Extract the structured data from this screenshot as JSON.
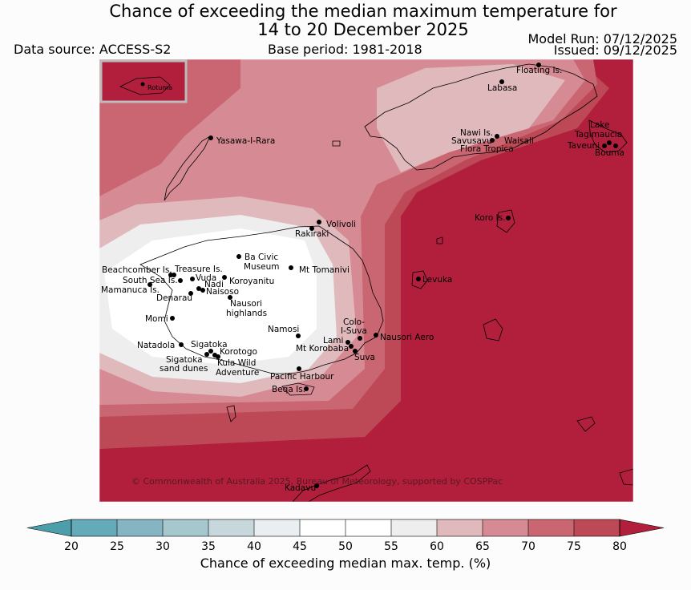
{
  "title_line1": "Chance of exceeding the median maximum temperature for",
  "title_line2": "14 to 20 December 2025",
  "data_source": "Data source: ACCESS-S2",
  "base_period": "Base period: 1981-2018",
  "model_run": "Model Run: 07/12/2025",
  "issued": "Issued: 09/12/2025",
  "copyright": "© Commonwealth of Australia 2025, Bureau of Meteorology, supported by COSPPac",
  "inset_label": "Rotuma",
  "places": {
    "floating": "Floating Is.",
    "labasa": "Labasa",
    "yasawa": "Yasawa-I-Rara",
    "nawi": "Nawi Is.",
    "savusavu": "Savusavu",
    "waisali": "Waisali",
    "flora": "Flora Tropica",
    "lake": "Lake",
    "tagimaucia": "Tagimaucia",
    "taveuni": "Taveuni",
    "bouma": "Bouma",
    "koro": "Koro Is.",
    "volivoli": "Volivoli",
    "rakiraki": "Rakiraki",
    "beachcomber": "Beachcomber Is.",
    "treasure": "Treasure Is.",
    "baciviclabel1": "Ba Civic",
    "baciviclabel2": "Museum",
    "tomanivi": "Mt Tomanivi",
    "southsea": "South Sea Is.",
    "vuda": "Vuda",
    "nadi": "Nadi",
    "koroyanitu": "Koroyanitu",
    "mamanuca": "Mamanuca Is.",
    "naisoso": "Naisoso",
    "denarau": "Denarau",
    "levuka": "Levuka",
    "nausori_h1": "Nausori",
    "nausori_h2": "highlands",
    "momi": "Momi",
    "namosi": "Namosi",
    "colo1": "Colo-",
    "colo2": "I-Suva",
    "lami": "Lami",
    "nausori_aero": "Nausori Aero",
    "natadola": "Natadola",
    "sigatoka": "Sigatoka",
    "korotogo": "Korotogo",
    "mtkorobaba": "Mt Korobaba",
    "suva": "Suva",
    "sig_dunes1": "Sigatoka",
    "sig_dunes2": "sand dunes",
    "kula1": "Kula Wild",
    "kula2": "Adventure",
    "pacific_harbour": "Pacific Harbour",
    "beqa": "Beqa Is.",
    "kadavu": "Kadavu"
  },
  "colorbar": {
    "title": "Chance of exceeding median max. temp. (%)",
    "ticks": [
      "20",
      "25",
      "30",
      "35",
      "40",
      "45",
      "50",
      "55",
      "60",
      "65",
      "70",
      "75",
      "80"
    ],
    "colors": [
      "#64aab8",
      "#85b5c2",
      "#a6c7cd",
      "#c7d8dd",
      "#e8eef1",
      "#ffffff",
      "#ffffff",
      "#eeeeee",
      "#e0b9bd",
      "#d68a93",
      "#c96672",
      "#bd4956"
    ],
    "under_color": "#4c9eaa",
    "over_color": "#b11f3c"
  }
}
